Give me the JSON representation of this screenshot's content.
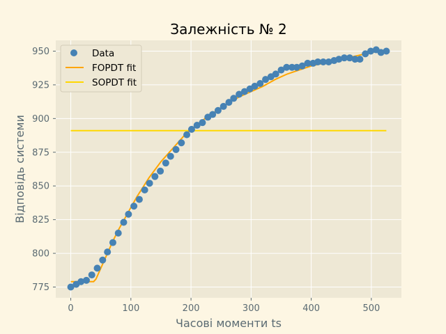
{
  "chart_data": {
    "type": "scatter",
    "title": "Залежність № 2",
    "xlabel": "Часові моменти ts",
    "ylabel": "Відповідь системи",
    "xlim": [
      -25,
      550
    ],
    "ylim": [
      767,
      958
    ],
    "x_ticks": [
      0,
      100,
      200,
      300,
      400,
      500
    ],
    "y_ticks": [
      775,
      800,
      825,
      850,
      875,
      900,
      925,
      950
    ],
    "grid": true,
    "legend_position": "top-left",
    "colors": {
      "background": "#fdf6e3",
      "plot_area": "#eee8d5",
      "grid": "#ffffff",
      "data": "#4682b4",
      "fopdt": "#ffa500",
      "sopdt": "#ffd700"
    },
    "series": [
      {
        "name": "Data",
        "kind": "scatter",
        "x": [
          0,
          9,
          17,
          26,
          35,
          44,
          53,
          61,
          70,
          79,
          88,
          96,
          105,
          114,
          123,
          131,
          140,
          149,
          158,
          166,
          175,
          184,
          193,
          201,
          210,
          219,
          228,
          236,
          245,
          254,
          263,
          271,
          280,
          289,
          298,
          306,
          315,
          324,
          333,
          341,
          350,
          359,
          368,
          376,
          385,
          394,
          403,
          411,
          420,
          429,
          438,
          446,
          455,
          464,
          473,
          481,
          490,
          499,
          508,
          516,
          525
        ],
        "y": [
          775,
          777,
          779,
          780,
          784,
          789,
          795,
          801,
          808,
          815,
          823,
          829,
          835,
          840,
          847,
          852,
          857,
          861,
          867,
          872,
          877,
          882,
          888,
          892,
          895,
          897,
          901,
          903,
          906,
          909,
          912,
          915,
          918,
          920,
          922,
          924,
          926,
          929,
          931,
          933,
          936,
          938,
          938,
          938,
          939,
          941,
          941,
          942,
          942,
          942,
          943,
          944,
          945,
          945,
          944,
          944,
          948,
          950,
          951,
          949,
          950
        ]
      },
      {
        "name": "FOPDT fit",
        "kind": "line",
        "x": [
          0,
          10,
          20,
          30,
          38,
          42,
          50,
          60,
          70,
          80,
          90,
          100,
          110,
          120,
          130,
          140,
          150,
          160,
          170,
          180,
          190,
          200,
          220,
          240,
          260,
          280,
          300,
          320,
          340,
          360,
          380,
          400,
          420,
          440,
          460,
          480,
          500,
          525
        ],
        "y": [
          779,
          779,
          779,
          779,
          779,
          781,
          789,
          799,
          809,
          818,
          826,
          834,
          842,
          849,
          856,
          862,
          868,
          873,
          878,
          883,
          888,
          892,
          899,
          905,
          911,
          916,
          920,
          924,
          929,
          933,
          936,
          939,
          941,
          943,
          945,
          947,
          949,
          951
        ]
      },
      {
        "name": "SOPDT fit",
        "kind": "line",
        "x": [
          0,
          525
        ],
        "y": [
          891,
          891
        ]
      }
    ]
  }
}
